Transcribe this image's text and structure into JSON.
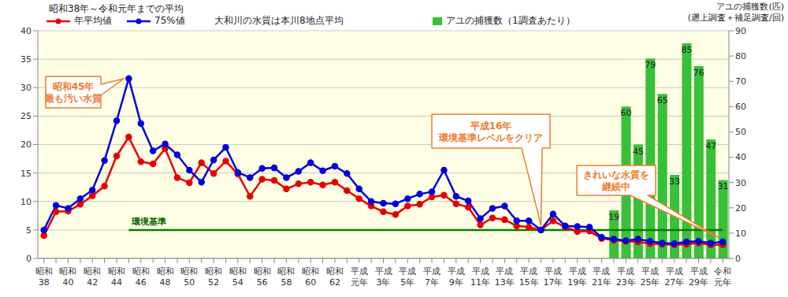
{
  "chart_data": {
    "type": "line",
    "title": "昭和38年～令和元年までの平均",
    "note": "大和川の水質は本川8地点平均",
    "categories": [
      "昭和38",
      null,
      "昭和40",
      null,
      "昭和42",
      null,
      "昭和44",
      null,
      "昭和46",
      null,
      "昭和48",
      null,
      "昭和50",
      null,
      "昭和52",
      null,
      "昭和54",
      null,
      "昭和56",
      null,
      "昭和58",
      null,
      "昭和60",
      null,
      "昭和62",
      null,
      "平成元年",
      null,
      "平成3年",
      null,
      "平成5年",
      null,
      "平成7年",
      null,
      "平成9年",
      null,
      "平成11年",
      null,
      "平成13年",
      null,
      "平成15年",
      null,
      "平成17年",
      null,
      "平成19年",
      null,
      "平成21年",
      null,
      "平成23年",
      null,
      "平成25年",
      null,
      "平成27年",
      null,
      "平成29年",
      null,
      "令和元年"
    ],
    "series": [
      {
        "name": "年平均値",
        "color": "#e60000",
        "marker": "circle",
        "values": [
          4.0,
          8.2,
          8.3,
          9.5,
          11.0,
          12.7,
          18.0,
          21.3,
          17.0,
          16.6,
          19.3,
          14.2,
          13.3,
          16.8,
          14.9,
          17.1,
          14.8,
          10.9,
          13.9,
          13.7,
          12.2,
          13.1,
          13.4,
          12.9,
          13.4,
          11.9,
          10.5,
          9.2,
          8.2,
          7.7,
          9.2,
          9.5,
          10.8,
          11.1,
          9.6,
          9.0,
          5.9,
          7.1,
          6.8,
          5.7,
          5.5,
          5.0,
          6.6,
          5.5,
          4.7,
          4.8,
          3.5,
          3.2,
          3.0,
          2.9,
          2.6,
          2.5,
          2.4,
          2.5,
          2.7,
          2.4,
          2.4
        ]
      },
      {
        "name": "75%値",
        "color": "#0000dd",
        "marker": "circle",
        "values": [
          5.0,
          9.3,
          8.8,
          10.5,
          12.0,
          17.2,
          24.2,
          31.6,
          23.7,
          18.9,
          20.1,
          18.2,
          15.5,
          13.4,
          17.3,
          19.5,
          15.1,
          14.2,
          15.8,
          15.9,
          14.2,
          15.3,
          16.8,
          15.4,
          16.2,
          14.9,
          12.2,
          10.0,
          9.7,
          9.6,
          10.5,
          11.3,
          11.7,
          15.5,
          10.9,
          10.1,
          7.0,
          8.8,
          9.2,
          6.6,
          6.6,
          5.0,
          7.8,
          5.7,
          5.6,
          5.5,
          3.7,
          3.4,
          3.1,
          3.4,
          3.0,
          2.7,
          2.6,
          2.9,
          3.0,
          2.7,
          2.9
        ]
      },
      {
        "name": "アユの捕獲数（1調査あたり）",
        "type": "bar",
        "axis": "y2",
        "color": "#38c038",
        "data_labels": true,
        "values": [
          null,
          null,
          null,
          null,
          null,
          null,
          null,
          null,
          null,
          null,
          null,
          null,
          null,
          null,
          null,
          null,
          null,
          null,
          null,
          null,
          null,
          null,
          null,
          null,
          null,
          null,
          null,
          null,
          null,
          null,
          null,
          null,
          null,
          null,
          null,
          null,
          null,
          null,
          null,
          null,
          null,
          null,
          null,
          null,
          null,
          null,
          null,
          19,
          60,
          45,
          79,
          65,
          33,
          85,
          76,
          47,
          31
        ]
      }
    ],
    "ylim": [
      0,
      40
    ],
    "yticks": [
      0,
      5,
      10,
      15,
      20,
      25,
      30,
      35,
      40
    ],
    "y2lim": [
      0,
      90
    ],
    "y2ticks": [
      0,
      10,
      20,
      30,
      40,
      50,
      60,
      70,
      80,
      90
    ],
    "y2_label": [
      "アユの捕獲数(匹)",
      "(遡上調査＋補足調査/回)"
    ],
    "grid": true,
    "legend": "top",
    "reference_line": {
      "value": 5,
      "label": "環境基準",
      "color": "#008000",
      "x_start": 7
    },
    "annotations": [
      {
        "text": [
          "昭和45年",
          "最も汚い水質"
        ]
      },
      {
        "text": [
          "平成16年",
          "環境基準レベルをクリア"
        ]
      },
      {
        "text": [
          "きれいな水質を",
          "継続中"
        ]
      }
    ]
  }
}
